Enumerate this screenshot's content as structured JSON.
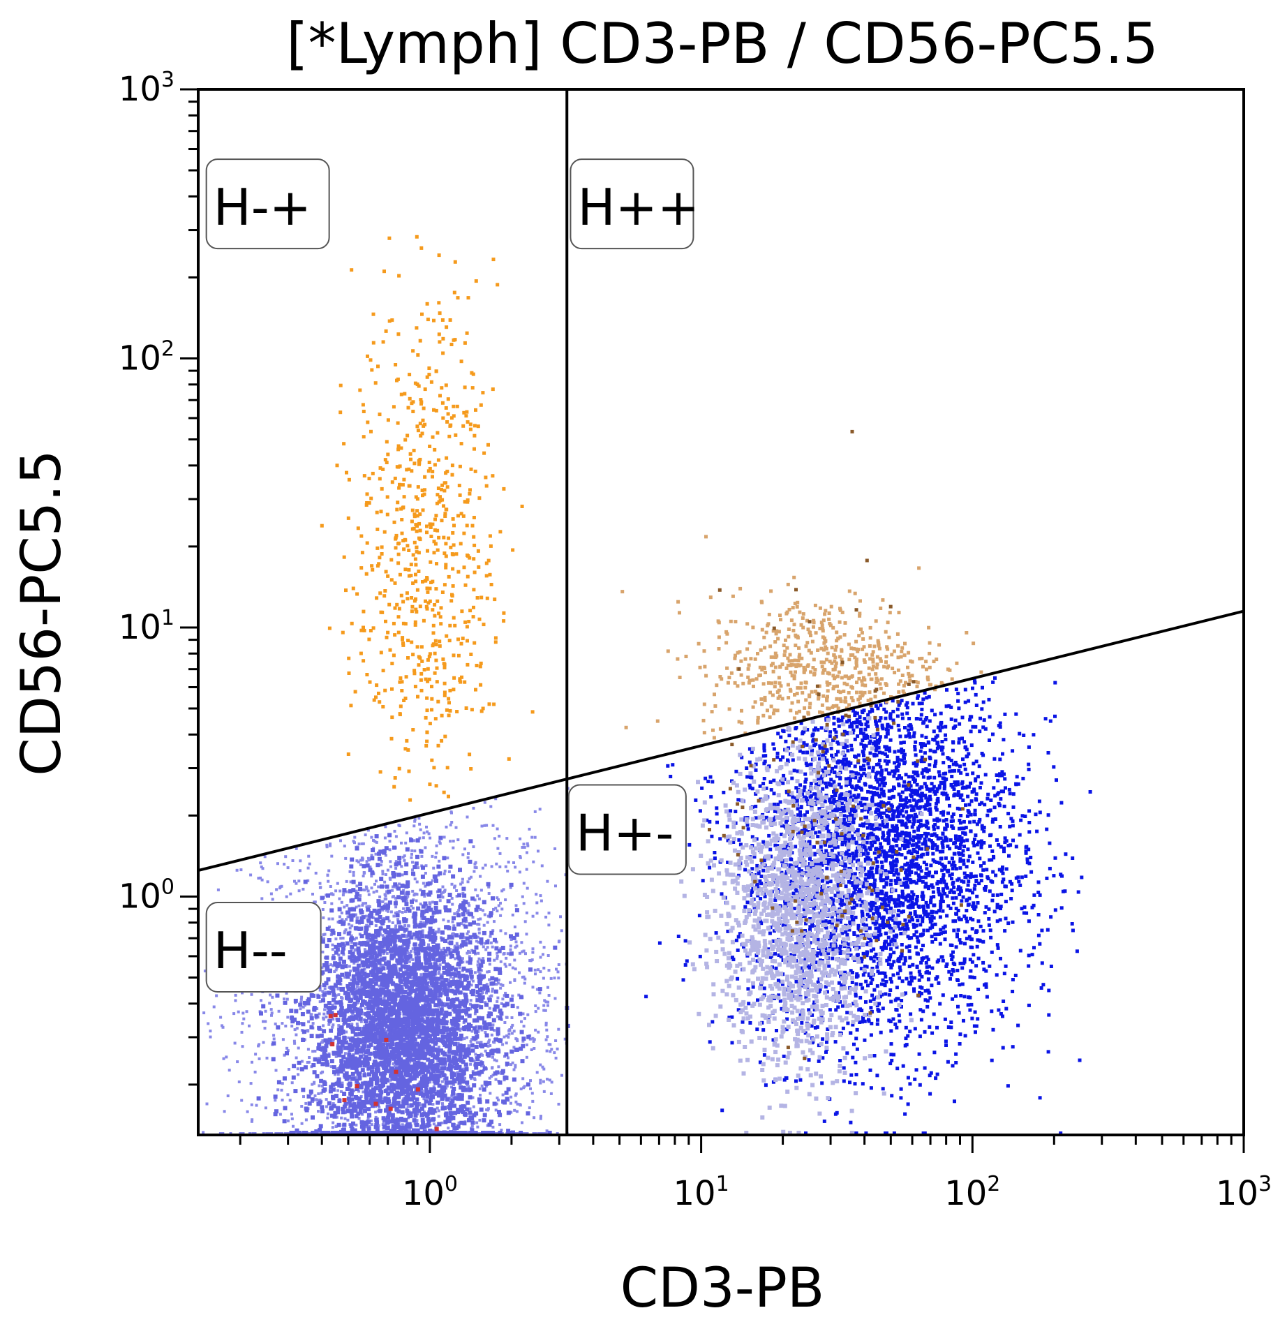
{
  "chart_data": {
    "type": "scatter",
    "title": "[*Lymph] CD3-PB / CD56-PC5.5",
    "xlabel": "CD3-PB",
    "ylabel": "CD56-PC5.5",
    "x_scale": "log",
    "y_scale": "log",
    "xlim": [
      0.14,
      1000
    ],
    "ylim": [
      0.13,
      1000
    ],
    "grid": false,
    "x_ticks": [
      {
        "base": "10",
        "exp": "0",
        "value": 1
      },
      {
        "base": "10",
        "exp": "1",
        "value": 10
      },
      {
        "base": "10",
        "exp": "2",
        "value": 100
      },
      {
        "base": "10",
        "exp": "3",
        "value": 1000
      }
    ],
    "y_ticks": [
      {
        "base": "10",
        "exp": "0",
        "value": 1
      },
      {
        "base": "10",
        "exp": "1",
        "value": 10
      },
      {
        "base": "10",
        "exp": "2",
        "value": 100
      },
      {
        "base": "10",
        "exp": "3",
        "value": 1000
      }
    ],
    "gates": {
      "vertical_x": 3.2,
      "diagonal_line": [
        [
          0.14,
          1.25
        ],
        [
          1000,
          11.5
        ]
      ],
      "labels": [
        {
          "text": "H-+",
          "x": 0.15,
          "y": 550
        },
        {
          "text": "H++",
          "x": 3.3,
          "y": 550
        },
        {
          "text": "H+-",
          "x": 3.25,
          "y": 2.6
        },
        {
          "text": "H--",
          "x": 0.15,
          "y": 0.95
        }
      ]
    },
    "series": [
      {
        "color": "#6464e0",
        "population": "CD3- CD56- dense cluster",
        "x_center": 0.78,
        "y_center": 0.32
      },
      {
        "color": "#8888e8",
        "population": "CD3- CD56- sparse halo",
        "x_center": 0.8,
        "y_center": 0.4
      },
      {
        "color": "#f59a1c",
        "population": "CD3- CD56+ NK cells",
        "x_center": 0.95,
        "y_center": 20
      },
      {
        "color": "#0a14e6",
        "population": "CD3+ CD56- T cells",
        "x_center": 45,
        "y_center": 1.5
      },
      {
        "color": "#b4b4e4",
        "population": "CD3+ CD56- light core",
        "x_center": 22,
        "y_center": 0.9
      },
      {
        "color": "#d8a46c",
        "population": "CD3+ CD56+ NKT cells",
        "x_center": 28,
        "y_center": 7
      },
      {
        "color": "#8a5a2a",
        "population": "CD3+ scattered brown events",
        "x_center": 30,
        "y_center": 2
      },
      {
        "color": "#d23232",
        "population": "CD3- red events",
        "x_center": 0.6,
        "y_center": 0.25
      }
    ]
  }
}
